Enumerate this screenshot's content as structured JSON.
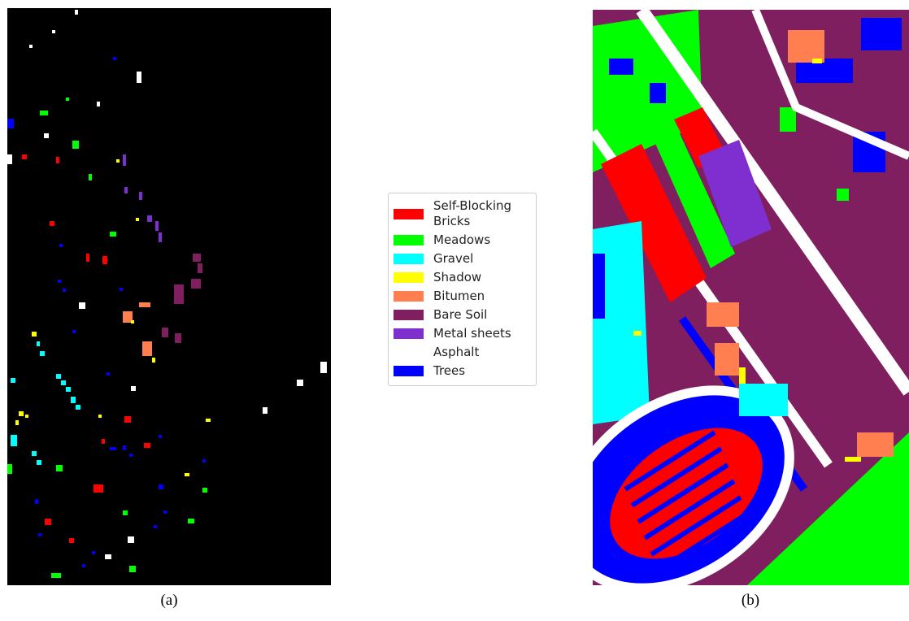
{
  "legend": {
    "items": [
      {
        "label": "Self-Blocking Bricks",
        "color": "#ff0000"
      },
      {
        "label": "Meadows",
        "color": "#00ff00"
      },
      {
        "label": "Gravel",
        "color": "#00ffff"
      },
      {
        "label": "Shadow",
        "color": "#ffff00"
      },
      {
        "label": "Bitumen",
        "color": "#ff7f50"
      },
      {
        "label": "Bare Soil",
        "color": "#7f1f5f"
      },
      {
        "label": "Metal sheets",
        "color": "#7f2fcf"
      },
      {
        "label": "Asphalt",
        "color": "#ffffff"
      },
      {
        "label": "Trees",
        "color": "#0000ff"
      }
    ]
  },
  "panels": [
    {
      "caption": "(a)",
      "background": "#000000"
    },
    {
      "caption": "(b)"
    }
  ]
}
